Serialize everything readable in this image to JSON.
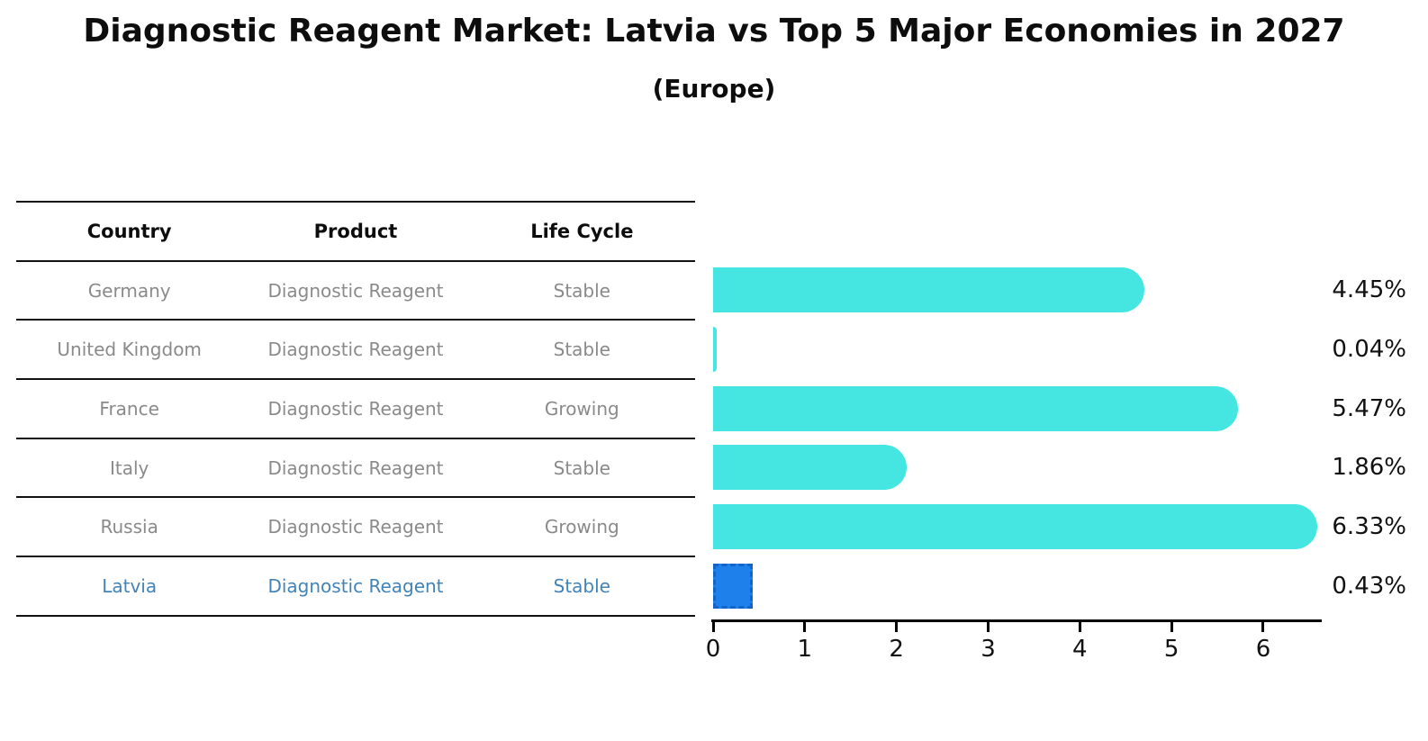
{
  "title": "Diagnostic Reagent Market: Latvia vs Top 5 Major Economies in 2027",
  "subtitle": "(Europe)",
  "table": {
    "headers": [
      "Country",
      "Product",
      "Life Cycle"
    ],
    "rows": [
      {
        "country": "Germany",
        "product": "Diagnostic Reagent",
        "life_cycle": "Stable",
        "highlight": false
      },
      {
        "country": "United Kingdom",
        "product": "Diagnostic Reagent",
        "life_cycle": "Stable",
        "highlight": false
      },
      {
        "country": "France",
        "product": "Diagnostic Reagent",
        "life_cycle": "Growing",
        "highlight": false
      },
      {
        "country": "Italy",
        "product": "Diagnostic Reagent",
        "life_cycle": "Stable",
        "highlight": false
      },
      {
        "country": "Russia",
        "product": "Diagnostic Reagent",
        "life_cycle": "Growing",
        "highlight": false
      },
      {
        "country": "Latvia",
        "product": "Diagnostic Reagent",
        "life_cycle": "Stable",
        "highlight": true
      }
    ]
  },
  "chart_data": {
    "type": "bar",
    "orientation": "horizontal",
    "title": "Diagnostic Reagent Market: Latvia vs Top 5 Major Economies in 2027 (Europe)",
    "categories": [
      "Germany",
      "United Kingdom",
      "France",
      "Italy",
      "Russia",
      "Latvia"
    ],
    "values": [
      4.45,
      0.04,
      5.47,
      1.86,
      6.33,
      0.43
    ],
    "value_labels": [
      "4.45%",
      "0.04%",
      "5.47%",
      "1.86%",
      "6.33%",
      "0.43%"
    ],
    "xlabel": "",
    "ylabel": "",
    "xlim": [
      0,
      6.63
    ],
    "xticks": [
      "0",
      "1",
      "2",
      "3",
      "4",
      "5",
      "6"
    ],
    "grid": false,
    "legend": false,
    "bar_color": "#45e6e1",
    "highlight_index": 5,
    "highlight_color": "#1e80ea",
    "highlight_border_color": "#1464c8",
    "highlight_text_color": "#4283b8",
    "axis_color": "#000000",
    "label_color": "#111111"
  }
}
